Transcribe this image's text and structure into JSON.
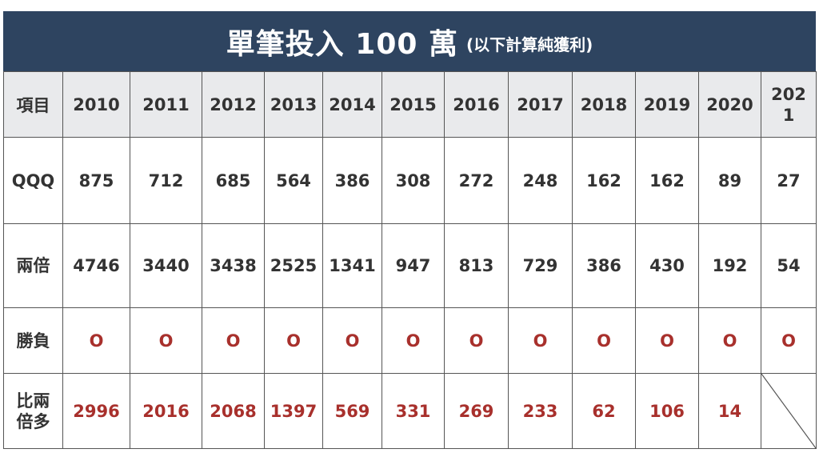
{
  "title": {
    "main": "單筆投入 100 萬",
    "sub": "(以下計算純獲利)"
  },
  "header": {
    "item_label": "項目",
    "years": [
      "2010",
      "2011",
      "2012",
      "2013",
      "2014",
      "2015",
      "2016",
      "2017",
      "2018",
      "2019",
      "2020"
    ],
    "last_year_line1": "202",
    "last_year_line2": "1"
  },
  "rows": {
    "qqq": {
      "label": "QQQ",
      "values": [
        "875",
        "712",
        "685",
        "564",
        "386",
        "308",
        "272",
        "248",
        "162",
        "162",
        "89",
        "27"
      ]
    },
    "double": {
      "label": "兩倍",
      "values": [
        "4746",
        "3440",
        "3438",
        "2525",
        "1341",
        "947",
        "813",
        "729",
        "386",
        "430",
        "192",
        "54"
      ]
    },
    "win": {
      "label": "勝負",
      "values": [
        "O",
        "O",
        "O",
        "O",
        "O",
        "O",
        "O",
        "O",
        "O",
        "O",
        "O",
        "O"
      ]
    },
    "compare": {
      "label_line1": "比兩",
      "label_line2": "倍多",
      "values": [
        "2996",
        "2016",
        "2068",
        "1397",
        "569",
        "331",
        "269",
        "233",
        "62",
        "106",
        "14"
      ]
    }
  },
  "colors": {
    "header_bg": "#2e4460",
    "accent_red": "#a8302c",
    "row_head_bg": "#e9eaec"
  }
}
